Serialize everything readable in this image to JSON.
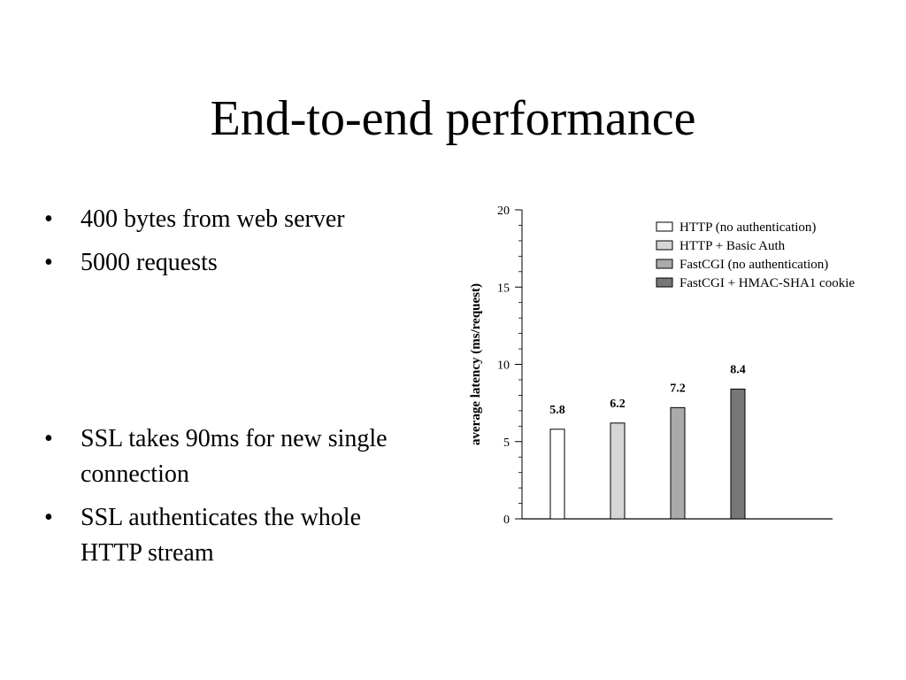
{
  "slide": {
    "title": "End-to-end performance",
    "bullets_top": [
      "400 bytes from web server",
      "5000 requests"
    ],
    "bullets_bottom": [
      "SSL takes 90ms for new single connection",
      "SSL authenticates the whole HTTP stream"
    ]
  },
  "chart_data": {
    "type": "bar",
    "ylabel": "average latency (ms/request)",
    "ylim": [
      0,
      20
    ],
    "yticks": [
      0,
      5,
      10,
      15,
      20
    ],
    "grid": false,
    "legend_position": "top-right",
    "series": [
      {
        "name": "HTTP (no authentication)",
        "value": 5.8,
        "label": "5.8",
        "color": "#ffffff"
      },
      {
        "name": "HTTP + Basic Auth",
        "value": 6.2,
        "label": "6.2",
        "color": "#d6d6d6"
      },
      {
        "name": "FastCGI (no authentication)",
        "value": 7.2,
        "label": "7.2",
        "color": "#aaaaaa"
      },
      {
        "name": "FastCGI + HMAC-SHA1 cookie",
        "value": 8.4,
        "label": "8.4",
        "color": "#777777"
      }
    ]
  }
}
